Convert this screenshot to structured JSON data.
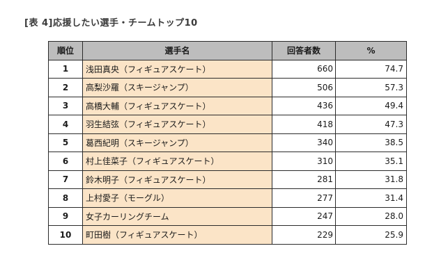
{
  "caption": "[表 4]応援したい選手・チームトップ10",
  "table": {
    "headers": {
      "rank": "順位",
      "name": "選手名",
      "count": "回答者数",
      "percent": "%"
    },
    "rows": [
      {
        "rank": "1",
        "name": "浅田真央（フィギュアスケート）",
        "count": "660",
        "percent": "74.7"
      },
      {
        "rank": "2",
        "name": "高梨沙羅（スキージャンプ）",
        "count": "506",
        "percent": "57.3"
      },
      {
        "rank": "3",
        "name": "高橋大輔（フィギュアスケート）",
        "count": "436",
        "percent": "49.4"
      },
      {
        "rank": "4",
        "name": "羽生結弦（フィギュアスケート）",
        "count": "418",
        "percent": "47.3"
      },
      {
        "rank": "5",
        "name": "葛西紀明（スキージャンプ）",
        "count": "340",
        "percent": "38.5"
      },
      {
        "rank": "6",
        "name": "村上佳菜子（フィギュアスケート）",
        "count": "310",
        "percent": "35.1"
      },
      {
        "rank": "7",
        "name": "鈴木明子（フィギュアスケート）",
        "count": "281",
        "percent": "31.8"
      },
      {
        "rank": "8",
        "name": "上村愛子（モーグル）",
        "count": "277",
        "percent": "31.4"
      },
      {
        "rank": "9",
        "name": "女子カーリングチーム",
        "count": "247",
        "percent": "28.0"
      },
      {
        "rank": "10",
        "name": "町田樹（フィギュアスケート）",
        "count": "229",
        "percent": "25.9"
      }
    ]
  }
}
